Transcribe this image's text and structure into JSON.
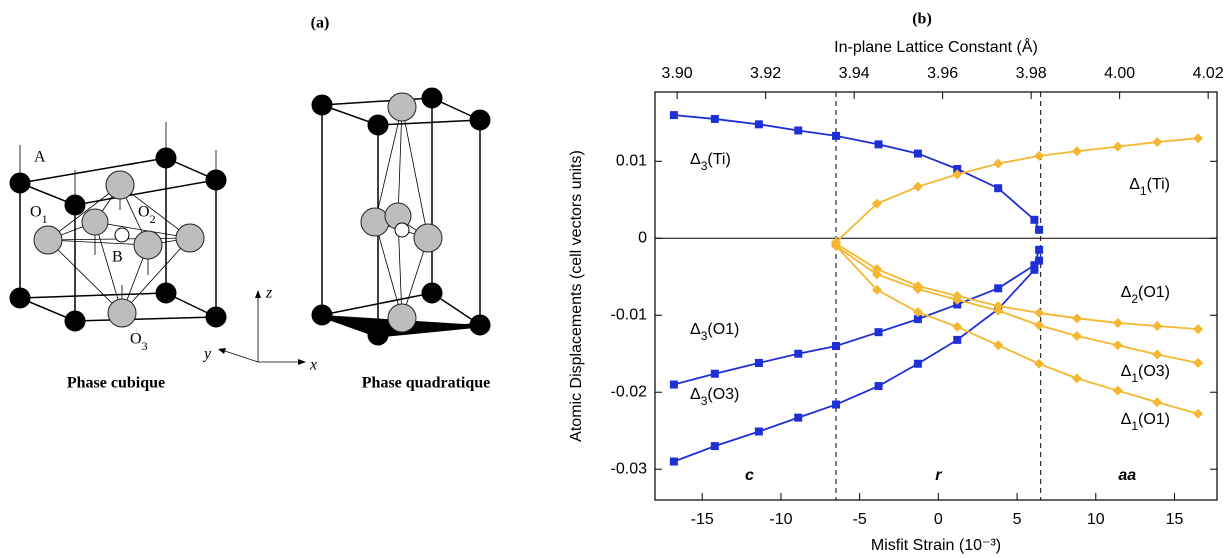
{
  "panel_a": {
    "label": "(a)",
    "atoms": {
      "A": "A",
      "O1": "O1",
      "O2": "O2",
      "B": "B",
      "O3": "O3"
    },
    "axes": {
      "z": "z",
      "y": "y",
      "x": "x"
    },
    "captions": [
      "Phase cubique",
      "Phase quadratique"
    ]
  },
  "chart_data": {
    "type": "line",
    "panel_label": "(b)",
    "x_label": "Misfit Strain (10⁻³)",
    "x2_label": "In-plane Lattice Constant (Å)",
    "y_label": "Atomic Displacements (cell vectors units)",
    "xlim": [
      -18,
      17.7
    ],
    "xticks": [
      -15,
      -10,
      -5,
      0,
      5,
      10,
      15
    ],
    "x2lim": [
      3.895,
      4.022
    ],
    "x2ticks": [
      {
        "value": 3.9,
        "label": "3.90"
      },
      3.92,
      3.94,
      3.96,
      3.98,
      {
        "value": 4.0,
        "label": "4.00"
      },
      4.02
    ],
    "ylim": [
      -0.034,
      0.019
    ],
    "yticks": [
      -0.03,
      -0.02,
      -0.01,
      0,
      0.01
    ],
    "vlines": [
      -6.5,
      6.5
    ],
    "hline": 0,
    "regions": [
      {
        "label": "c",
        "x": -12
      },
      {
        "label": "r",
        "x": 0
      },
      {
        "label": "aa",
        "x": 12
      }
    ],
    "series": [
      {
        "name": "Δ3(Ti)",
        "color": "#1f2fd6",
        "marker": "square",
        "x": [
          -16.8,
          -14.2,
          -11.4,
          -8.9,
          -6.5,
          -3.8,
          -1.3,
          1.2,
          3.8,
          6.1,
          6.4
        ],
        "values": [
          0.016,
          0.0155,
          0.0148,
          0.014,
          0.0133,
          0.0122,
          0.011,
          0.009,
          0.0065,
          0.0024,
          0.0011
        ]
      },
      {
        "name": "Δ3(O1)",
        "color": "#1f2fd6",
        "marker": "square",
        "x": [
          -16.8,
          -14.2,
          -11.4,
          -8.9,
          -6.5,
          -3.8,
          -1.3,
          1.2,
          3.8,
          6.1,
          6.4
        ],
        "values": [
          -0.019,
          -0.0176,
          -0.0162,
          -0.015,
          -0.014,
          -0.0122,
          -0.0105,
          -0.0086,
          -0.0065,
          -0.0035,
          -0.0015
        ]
      },
      {
        "name": "Δ3(O3)",
        "color": "#1f2fd6",
        "marker": "square",
        "x": [
          -16.8,
          -14.2,
          -11.4,
          -8.9,
          -6.5,
          -3.8,
          -1.3,
          1.2,
          3.8,
          6.1,
          6.4
        ],
        "values": [
          -0.029,
          -0.027,
          -0.0251,
          -0.0233,
          -0.0216,
          -0.0192,
          -0.0163,
          -0.0132,
          -0.0092,
          -0.0041,
          -0.0029
        ]
      },
      {
        "name": "Δ1(Ti)",
        "color": "#f5b731",
        "marker": "diamond",
        "x": [
          -6.5,
          -3.9,
          -1.3,
          1.2,
          3.8,
          6.4,
          8.8,
          11.4,
          13.9,
          16.5
        ],
        "values": [
          -0.0005,
          0.0045,
          0.0067,
          0.0083,
          0.0097,
          0.0107,
          0.0113,
          0.0119,
          0.0125,
          0.013
        ]
      },
      {
        "name": "Δ2(O1)",
        "color": "#f5b731",
        "marker": "diamond",
        "x": [
          -6.5,
          -3.9,
          -1.3,
          1.2,
          3.8,
          6.4,
          8.8,
          11.4,
          13.9,
          16.5
        ],
        "values": [
          -0.0007,
          -0.004,
          -0.0062,
          -0.0075,
          -0.0088,
          -0.0097,
          -0.0104,
          -0.011,
          -0.0114,
          -0.0118
        ]
      },
      {
        "name": "Δ1(O3)",
        "color": "#f5b731",
        "marker": "diamond",
        "x": [
          -6.5,
          -3.9,
          -1.3,
          1.2,
          3.8,
          6.4,
          8.8,
          11.4,
          13.9,
          16.5
        ],
        "values": [
          -0.001,
          -0.0047,
          -0.0066,
          -0.008,
          -0.0094,
          -0.0113,
          -0.0127,
          -0.0139,
          -0.0151,
          -0.0162
        ]
      },
      {
        "name": "Δ1(O1)",
        "color": "#f5b731",
        "marker": "diamond",
        "x": [
          -6.5,
          -3.9,
          -1.3,
          1.2,
          3.8,
          6.4,
          8.8,
          11.4,
          13.9,
          16.5
        ],
        "values": [
          -0.001,
          -0.0067,
          -0.0096,
          -0.0115,
          -0.0139,
          -0.0163,
          -0.0182,
          -0.0198,
          -0.0213,
          -0.0228
        ]
      }
    ]
  }
}
